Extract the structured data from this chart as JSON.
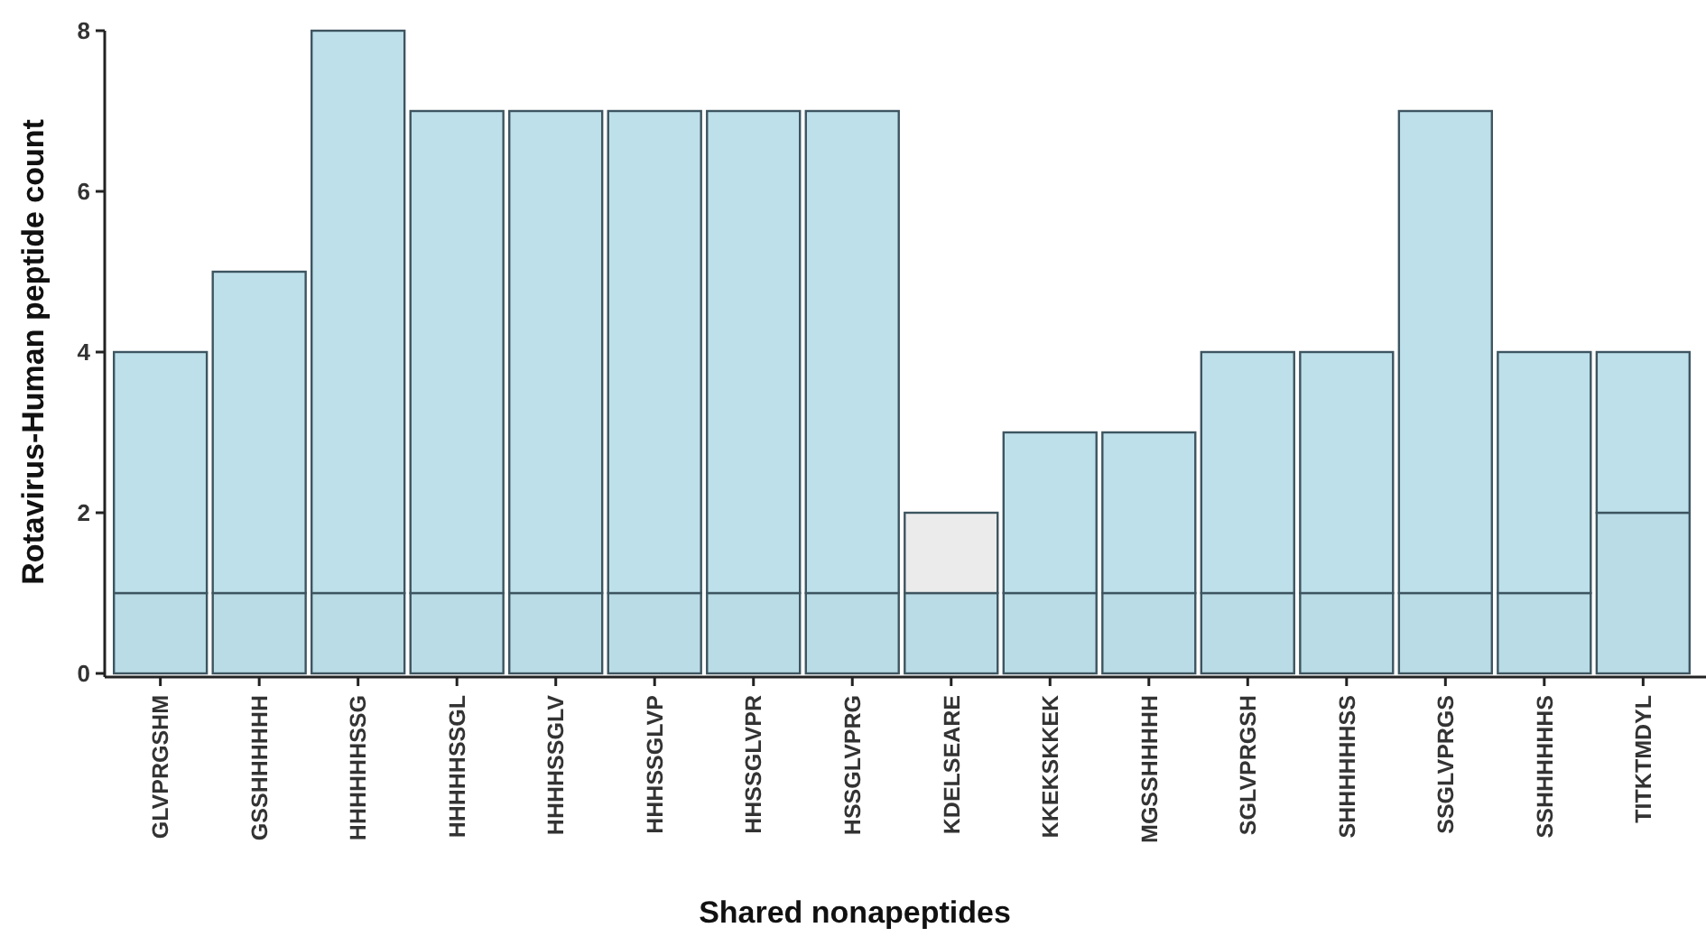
{
  "chart_data": {
    "type": "bar",
    "stacked": true,
    "xlabel": "Shared nonapeptides",
    "ylabel": "Rotavirus-Human peptide count",
    "categories": [
      "GLVPRGSHM",
      "GSSHHHHHH",
      "HHHHHHSSG",
      "HHHHHSSGL",
      "HHHHSSGLV",
      "HHHSSGLVP",
      "HHSSGLVPR",
      "HSSGLVPRG",
      "KDELSEARE",
      "KKEKSKKEK",
      "MGSSHHHHH",
      "SGLVPRGSH",
      "SHHHHHHSS",
      "SSGLVPRGS",
      "SSHHHHHHS",
      "TITKTMDYL"
    ],
    "series": [
      {
        "color": "#b9dce6",
        "values": [
          1,
          1,
          1,
          1,
          1,
          1,
          1,
          1,
          1,
          1,
          1,
          1,
          1,
          1,
          1,
          2
        ]
      },
      {
        "colors": [
          "#bde0ea",
          "#bde0ea",
          "#bde0ea",
          "#bde0ea",
          "#bde0ea",
          "#bde0ea",
          "#bde0ea",
          "#bde0ea",
          "#ebebeb",
          "#bde0ea",
          "#bde0ea",
          "#bde0ea",
          "#bde0ea",
          "#bde0ea",
          "#bde0ea",
          "#bde0ea"
        ],
        "values": [
          3,
          4,
          7,
          6,
          6,
          6,
          6,
          6,
          1,
          2,
          2,
          3,
          3,
          6,
          3,
          2
        ]
      }
    ],
    "ylim": [
      0,
      8
    ],
    "yticks": [
      0,
      2,
      4,
      6,
      8
    ]
  }
}
